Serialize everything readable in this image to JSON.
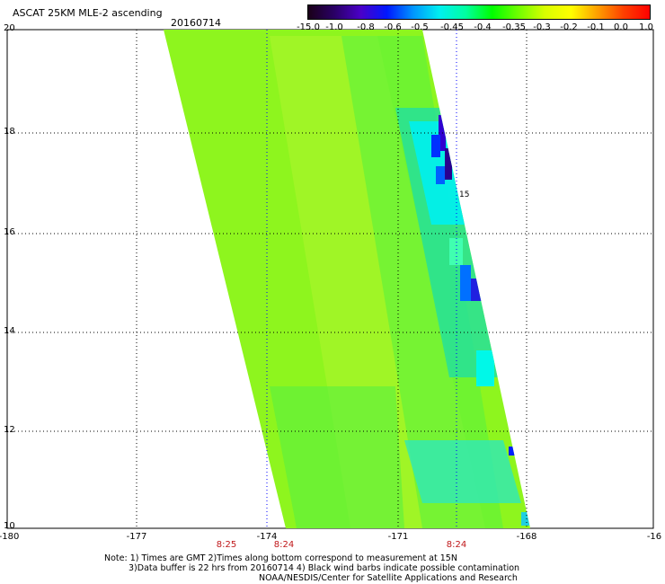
{
  "title": "ASCAT 25KM MLE-2 ascending",
  "date": "20160714",
  "colorbar": {
    "labels": [
      "-15.0",
      "-1.0",
      "-0.8",
      "-0.6",
      "-0.5",
      "-0.45",
      "-0.4",
      "-0.35",
      "-0.3",
      "-0.2",
      "-0.1",
      "0.0",
      "1.0"
    ],
    "colors": [
      "#1a0018",
      "#2a0066",
      "#4a00c8",
      "#0018ff",
      "#0096ff",
      "#00f0f0",
      "#00ffa0",
      "#00ff00",
      "#70ff00",
      "#d8ff00",
      "#ffff00",
      "#ffa000",
      "#ff4000",
      "#ff0000"
    ]
  },
  "axes": {
    "x_ticks": [
      "-180",
      "-177",
      "-174",
      "-171",
      "-168",
      "-16"
    ],
    "y_ticks": [
      "20",
      "18",
      "16",
      "14",
      "12",
      "10"
    ]
  },
  "swath_label": "15",
  "times": [
    "8:25",
    "8:24",
    "8:24"
  ],
  "notes": [
    "Note: 1) Times are GMT 2)Times along bottom correspond to measurement at 15N",
    "3)Data buffer is 22 hrs from 20160714 4) Black wind barbs indicate possible contamination",
    "NOAA/NESDIS/Center for Satellite Applications and Research"
  ]
}
